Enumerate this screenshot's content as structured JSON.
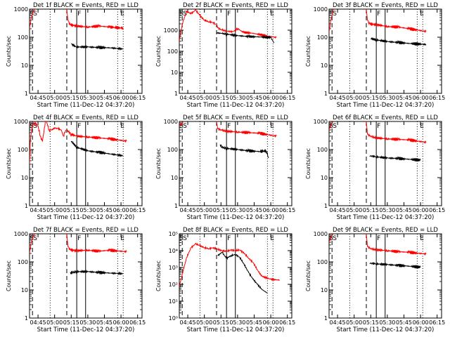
{
  "x_ticks": [
    "04:45",
    "05:00",
    "05:15",
    "05:30",
    "05:45",
    "06:00",
    "06:15"
  ],
  "y_ticks_plain": [
    "1",
    "10",
    "100",
    "1000"
  ],
  "y_ticks_exp": [
    "10⁰",
    "10¹",
    "10²",
    "10³",
    "10⁴",
    "10⁵"
  ],
  "xlabel": "Start Time (11-Dec-12 04:37:20)",
  "ylabel": "Counts/sec",
  "marker_labels": {
    "s": "S",
    "f": "F",
    "e": "E",
    "s2": "S"
  },
  "colors": {
    "events": "#000000",
    "lld": "#ff0000"
  },
  "x_range": [
    "04:37:20",
    "06:19:00"
  ],
  "vlines": [
    {
      "time": "04:40:00",
      "style": "dashed"
    },
    {
      "time": "04:56:00",
      "style": "dotted"
    },
    {
      "time": "05:11:00",
      "style": "dashed"
    },
    {
      "time": "05:20:00",
      "style": "solid"
    },
    {
      "time": "05:28:00",
      "style": "solid"
    },
    {
      "time": "05:57:00",
      "style": "dotted"
    },
    {
      "time": "06:02:00",
      "style": "dotted"
    }
  ],
  "chart_data": [
    {
      "type": "line",
      "title": "Det 1f BLACK = Events, RED = LLD",
      "ylim": [
        1,
        1000
      ],
      "yscale": "log",
      "exp_ticks": false,
      "series": [
        {
          "x": [
            "04:37:20",
            "04:39:00",
            "04:40:30",
            "04:42:00"
          ],
          "y": [
            200,
            500,
            850,
            1000
          ]
        },
        {
          "x": [
            "05:11:00",
            "05:12:00",
            "05:14:00",
            "05:20:00",
            "05:30:00",
            "05:40:00",
            "05:50:00",
            "06:02:00"
          ],
          "y": [
            1000,
            400,
            280,
            250,
            230,
            250,
            230,
            210
          ]
        },
        {
          "x": [
            "05:15:00",
            "05:17:00",
            "05:20:00",
            "05:30:00",
            "05:40:00",
            "05:50:00",
            "06:02:00"
          ],
          "y": [
            60,
            50,
            45,
            45,
            43,
            42,
            38
          ]
        }
      ]
    },
    {
      "type": "line",
      "title": "Det 2f BLACK = Events, RED = LLD",
      "ylim": [
        1,
        10000
      ],
      "yscale": "log",
      "exp_ticks": false,
      "series": [
        {
          "x": [
            "04:37:20",
            "04:40:00",
            "04:44:00",
            "04:48:00",
            "04:52:00",
            "04:56:00",
            "05:00:00",
            "05:04:00",
            "05:08:00",
            "05:10:00"
          ],
          "y": [
            300,
            2000,
            8000,
            6000,
            9000,
            5000,
            3000,
            2500,
            2300,
            2000
          ]
        },
        {
          "x": [
            "05:11:00",
            "05:12:00",
            "05:16:00",
            "05:20:00",
            "05:26:00",
            "05:30:00",
            "05:35:00",
            "05:45:00",
            "05:55:00",
            "06:05:00"
          ],
          "y": [
            2000,
            1300,
            1000,
            900,
            850,
            1200,
            800,
            700,
            550,
            450
          ]
        },
        {
          "x": [
            "05:11:00",
            "05:16:00",
            "05:20:00",
            "05:30:00",
            "05:40:00",
            "05:50:00",
            "06:00:00",
            "06:03:00"
          ],
          "y": [
            750,
            700,
            650,
            550,
            500,
            480,
            450,
            250
          ]
        }
      ]
    },
    {
      "type": "line",
      "title": "Det 3f BLACK = Events, RED = LLD",
      "ylim": [
        1,
        1000
      ],
      "yscale": "log",
      "exp_ticks": false,
      "series": [
        {
          "x": [
            "04:37:20",
            "04:39:00",
            "04:40:30",
            "04:41:30"
          ],
          "y": [
            150,
            400,
            800,
            1000
          ]
        },
        {
          "x": [
            "05:11:00",
            "05:12:00",
            "05:14:00",
            "05:20:00",
            "05:30:00",
            "05:40:00",
            "05:50:00",
            "06:05:00"
          ],
          "y": [
            1000,
            400,
            300,
            280,
            240,
            230,
            200,
            160
          ]
        },
        {
          "x": [
            "05:15:00",
            "05:20:00",
            "05:30:00",
            "05:40:00",
            "05:50:00",
            "06:05:00"
          ],
          "y": [
            90,
            80,
            70,
            65,
            60,
            55
          ]
        }
      ]
    },
    {
      "type": "line",
      "title": "Det 4f BLACK = Events, RED = LLD",
      "ylim": [
        1,
        1000
      ],
      "yscale": "log",
      "exp_ticks": false,
      "series": [
        {
          "x": [
            "04:37:20",
            "04:38:00",
            "04:40:00",
            "04:42:00",
            "04:45:00",
            "04:47:00",
            "04:49:00",
            "04:52:00",
            "04:55:00",
            "04:58:00",
            "05:00:00",
            "05:03:00",
            "05:06:00",
            "05:08:00",
            "05:10:00"
          ],
          "y": [
            30,
            200,
            800,
            900,
            700,
            300,
            200,
            1200,
            500,
            500,
            600,
            550,
            500,
            300,
            500
          ]
        },
        {
          "x": [
            "05:11:00",
            "05:15:00",
            "05:20:00",
            "05:30:00",
            "05:40:00",
            "05:50:00",
            "06:05:00"
          ],
          "y": [
            500,
            350,
            300,
            280,
            260,
            240,
            200
          ]
        },
        {
          "x": [
            "05:15:00",
            "05:20:00",
            "05:30:00",
            "05:40:00",
            "05:50:00",
            "06:02:00"
          ],
          "y": [
            200,
            120,
            90,
            80,
            70,
            60
          ]
        }
      ]
    },
    {
      "type": "line",
      "title": "Det 5f BLACK = Events, RED = LLD",
      "ylim": [
        1,
        1000
      ],
      "yscale": "log",
      "exp_ticks": false,
      "series": [
        {
          "x": [
            "04:37:20",
            "04:40:00",
            "04:41:00"
          ],
          "y": [
            700,
            900,
            1000
          ]
        },
        {
          "x": [
            "05:11:00",
            "05:12:00",
            "05:16:00",
            "05:20:00",
            "05:30:00",
            "05:40:00",
            "05:50:00",
            "06:05:00"
          ],
          "y": [
            1000,
            550,
            480,
            450,
            420,
            400,
            380,
            300
          ]
        },
        {
          "x": [
            "05:14:00",
            "05:16:00",
            "05:20:00",
            "05:30:00",
            "05:40:00",
            "05:50:00",
            "05:56:00",
            "05:58:00"
          ],
          "y": [
            150,
            120,
            110,
            100,
            90,
            85,
            90,
            50
          ]
        }
      ]
    },
    {
      "type": "line",
      "title": "Det 6f BLACK = Events, RED = LLD",
      "ylim": [
        1,
        1000
      ],
      "yscale": "log",
      "exp_ticks": false,
      "series": [
        {
          "x": [
            "04:37:20",
            "04:40:00",
            "04:41:00"
          ],
          "y": [
            500,
            900,
            1000
          ]
        },
        {
          "x": [
            "05:11:00",
            "05:12:00",
            "05:16:00",
            "05:20:00",
            "05:30:00",
            "05:40:00",
            "05:50:00",
            "06:05:00"
          ],
          "y": [
            1000,
            350,
            280,
            260,
            240,
            230,
            220,
            180
          ]
        },
        {
          "x": [
            "05:14:00",
            "05:20:00",
            "05:30:00",
            "05:40:00",
            "05:50:00",
            "06:00:00"
          ],
          "y": [
            60,
            55,
            50,
            48,
            45,
            42
          ]
        }
      ]
    },
    {
      "type": "line",
      "title": "Det 7f BLACK = Events, RED = LLD",
      "ylim": [
        1,
        1000
      ],
      "yscale": "log",
      "exp_ticks": false,
      "series": [
        {
          "x": [
            "04:37:20",
            "04:39:00",
            "04:40:30",
            "04:42:00"
          ],
          "y": [
            200,
            500,
            850,
            1000
          ]
        },
        {
          "x": [
            "05:11:00",
            "05:12:00",
            "05:14:00",
            "05:20:00",
            "05:30:00",
            "05:40:00",
            "05:50:00",
            "06:05:00"
          ],
          "y": [
            1000,
            350,
            270,
            250,
            260,
            240,
            260,
            230
          ]
        },
        {
          "x": [
            "05:14:00",
            "05:16:00",
            "05:20:00",
            "05:30:00",
            "05:40:00",
            "05:50:00",
            "06:02:00"
          ],
          "y": [
            40,
            42,
            45,
            45,
            42,
            40,
            38
          ]
        }
      ]
    },
    {
      "type": "line",
      "title": "Det 8f BLACK = Events, RED = LLD",
      "ylim": [
        1,
        100000
      ],
      "yscale": "log",
      "exp_ticks": true,
      "series": [
        {
          "x": [
            "04:37:20",
            "04:40:00",
            "04:44:00",
            "04:48:00",
            "04:52:00",
            "04:56:00",
            "05:00:00",
            "05:04:00",
            "05:08:00",
            "05:12:00",
            "05:16:00",
            "05:20:00",
            "05:24:00",
            "05:28:00",
            "05:32:00",
            "05:36:00",
            "05:40:00",
            "05:44:00",
            "05:48:00",
            "05:52:00",
            "06:00:00",
            "06:08:00"
          ],
          "y": [
            70,
            400,
            4000,
            15000,
            25000,
            20000,
            15000,
            13000,
            15000,
            12000,
            10000,
            9000,
            11000,
            10000,
            11000,
            7000,
            3500,
            2000,
            700,
            300,
            200,
            180
          ]
        },
        {
          "x": [
            "05:12:00",
            "05:16:00",
            "05:20:00",
            "05:24:00",
            "05:28:00",
            "05:32:00",
            "05:36:00",
            "05:40:00",
            "05:44:00",
            "05:48:00",
            "05:52:00",
            "05:57:00"
          ],
          "y": [
            5000,
            8000,
            3500,
            5000,
            6000,
            4000,
            1500,
            500,
            200,
            100,
            50,
            30
          ]
        }
      ]
    },
    {
      "type": "line",
      "title": "Det 9f BLACK = Events, RED = LLD",
      "ylim": [
        1,
        1000
      ],
      "yscale": "log",
      "exp_ticks": false,
      "series": [
        {
          "x": [
            "04:37:20",
            "04:40:00",
            "04:41:00"
          ],
          "y": [
            500,
            900,
            1000
          ]
        },
        {
          "x": [
            "05:11:00",
            "05:12:00",
            "05:16:00",
            "05:20:00",
            "05:30:00",
            "05:40:00",
            "05:50:00",
            "06:05:00"
          ],
          "y": [
            1000,
            350,
            280,
            270,
            250,
            230,
            220,
            190
          ]
        },
        {
          "x": [
            "05:14:00",
            "05:20:00",
            "05:30:00",
            "05:40:00",
            "05:50:00",
            "06:00:00"
          ],
          "y": [
            90,
            85,
            80,
            75,
            70,
            65
          ]
        }
      ]
    }
  ]
}
